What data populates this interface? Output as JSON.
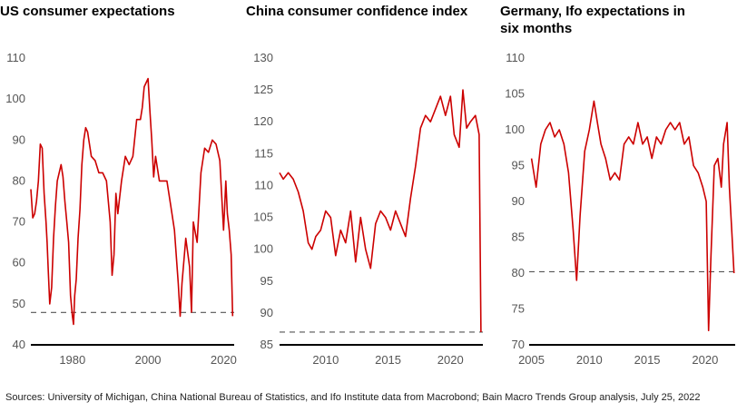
{
  "source": "Sources: University of Michigan, China National Bureau of Statistics, and Ifo Institute data from Macrobond; Bain Macro Trends Group analysis, July 25, 2022",
  "chart_data": [
    {
      "type": "line",
      "title": [
        "US consumer expectations"
      ],
      "ylim": [
        40,
        110
      ],
      "yticks": [
        40,
        50,
        60,
        70,
        80,
        90,
        100,
        110
      ],
      "xlim": [
        1969,
        2022.8
      ],
      "xticks": [
        1980,
        2000,
        2020
      ],
      "reference_line": 47.9,
      "color": "#cc0000",
      "series": [
        {
          "x": [
            1969.0,
            1969.5,
            1970.0,
            1970.5,
            1971.0,
            1971.5,
            1972.0,
            1972.5,
            1973.0,
            1973.3,
            1973.6,
            1974.0,
            1974.5,
            1975.0,
            1975.5,
            1976.0,
            1977.0,
            1977.5,
            1978.0,
            1978.5,
            1979.0,
            1979.5,
            1980.0,
            1980.3,
            1980.6,
            1981.0,
            1981.5,
            1982.0,
            1982.5,
            1983.0,
            1983.5,
            1984.0,
            1985.0,
            1986.0,
            1987.0,
            1988.0,
            1989.0,
            1990.0,
            1990.5,
            1991.0,
            1991.5,
            1992.0,
            1993.0,
            1994.0,
            1995.0,
            1996.0,
            1997.0,
            1998.0,
            1998.5,
            1999.0,
            2000.0,
            2000.5,
            2001.0,
            2001.5,
            2002.0,
            2003.0,
            2004.0,
            2005.0,
            2006.0,
            2007.0,
            2008.0,
            2008.5,
            2009.0,
            2010.0,
            2011.0,
            2011.5,
            2012.0,
            2013.0,
            2014.0,
            2015.0,
            2016.0,
            2017.0,
            2018.0,
            2019.0,
            2020.0,
            2020.3,
            2020.6,
            2021.0,
            2021.5,
            2022.0,
            2022.4
          ],
          "y": [
            78,
            71,
            72,
            75,
            80,
            89,
            88,
            77,
            70,
            65,
            58,
            50,
            54,
            66,
            74,
            80,
            84,
            81,
            75,
            70,
            65,
            52,
            47,
            45,
            52,
            56,
            66,
            73,
            84,
            90,
            93,
            92,
            86,
            85,
            82,
            82,
            80,
            70,
            57,
            62,
            77,
            72,
            80,
            86,
            84,
            86,
            95,
            95,
            98,
            103,
            105,
            97,
            90,
            81,
            86,
            80,
            80,
            80,
            74,
            68,
            55,
            47,
            55,
            66,
            59,
            48,
            70,
            65,
            82,
            88,
            87,
            90,
            89,
            85,
            68,
            74,
            80,
            72,
            68,
            62,
            47
          ]
        }
      ]
    },
    {
      "type": "line",
      "title": [
        "China consumer confidence index"
      ],
      "ylim": [
        85,
        130
      ],
      "yticks": [
        85,
        90,
        95,
        100,
        105,
        110,
        115,
        120,
        125,
        130
      ],
      "xlim": [
        2006.3,
        2022.6
      ],
      "xticks": [
        2010,
        2015,
        2020
      ],
      "reference_line": 87.0,
      "color": "#cc0000",
      "series": [
        {
          "x": [
            2006.3,
            2006.6,
            2007.0,
            2007.4,
            2007.8,
            2008.2,
            2008.6,
            2008.9,
            2009.2,
            2009.6,
            2010.0,
            2010.4,
            2010.8,
            2011.2,
            2011.6,
            2012.0,
            2012.4,
            2012.8,
            2013.2,
            2013.6,
            2014.0,
            2014.4,
            2014.8,
            2015.2,
            2015.6,
            2016.0,
            2016.4,
            2016.8,
            2017.2,
            2017.6,
            2018.0,
            2018.4,
            2018.8,
            2019.2,
            2019.6,
            2020.0,
            2020.3,
            2020.7,
            2021.0,
            2021.3,
            2021.6,
            2022.0,
            2022.3,
            2022.45
          ],
          "y": [
            112,
            111,
            112,
            111,
            109,
            106,
            101,
            100,
            102,
            103,
            106,
            105,
            99,
            103,
            101,
            106,
            98,
            105,
            100,
            97,
            104,
            106,
            105,
            103,
            106,
            104,
            102,
            108,
            113,
            119,
            121,
            120,
            122,
            124,
            121,
            124,
            118,
            116,
            125,
            119,
            120,
            121,
            118,
            87
          ]
        }
      ]
    },
    {
      "type": "line",
      "title": [
        "Germany, Ifo expectations in",
        "six months"
      ],
      "ylim": [
        70,
        110
      ],
      "yticks": [
        70,
        75,
        80,
        85,
        90,
        95,
        100,
        105,
        110
      ],
      "xlim": [
        2004.8,
        2022.6
      ],
      "xticks": [
        2005,
        2010,
        2015,
        2020
      ],
      "reference_line": 80.2,
      "color": "#cc0000",
      "series": [
        {
          "x": [
            2005.0,
            2005.4,
            2005.8,
            2006.2,
            2006.6,
            2007.0,
            2007.4,
            2007.8,
            2008.2,
            2008.6,
            2008.9,
            2009.2,
            2009.6,
            2010.0,
            2010.4,
            2010.7,
            2011.0,
            2011.4,
            2011.8,
            2012.2,
            2012.6,
            2013.0,
            2013.4,
            2013.8,
            2014.2,
            2014.6,
            2015.0,
            2015.4,
            2015.8,
            2016.2,
            2016.6,
            2017.0,
            2017.4,
            2017.8,
            2018.2,
            2018.6,
            2019.0,
            2019.4,
            2019.8,
            2020.1,
            2020.3,
            2020.5,
            2020.8,
            2021.1,
            2021.4,
            2021.6,
            2021.9,
            2022.1,
            2022.3,
            2022.5
          ],
          "y": [
            96,
            92,
            98,
            100,
            101,
            99,
            100,
            98,
            94,
            86,
            79,
            88,
            97,
            100,
            104,
            101,
            98,
            96,
            93,
            94,
            93,
            98,
            99,
            98,
            101,
            98,
            99,
            96,
            99,
            98,
            100,
            101,
            100,
            101,
            98,
            99,
            95,
            94,
            92,
            90,
            72,
            82,
            95,
            96,
            92,
            98,
            101,
            92,
            86,
            80
          ]
        }
      ]
    }
  ]
}
